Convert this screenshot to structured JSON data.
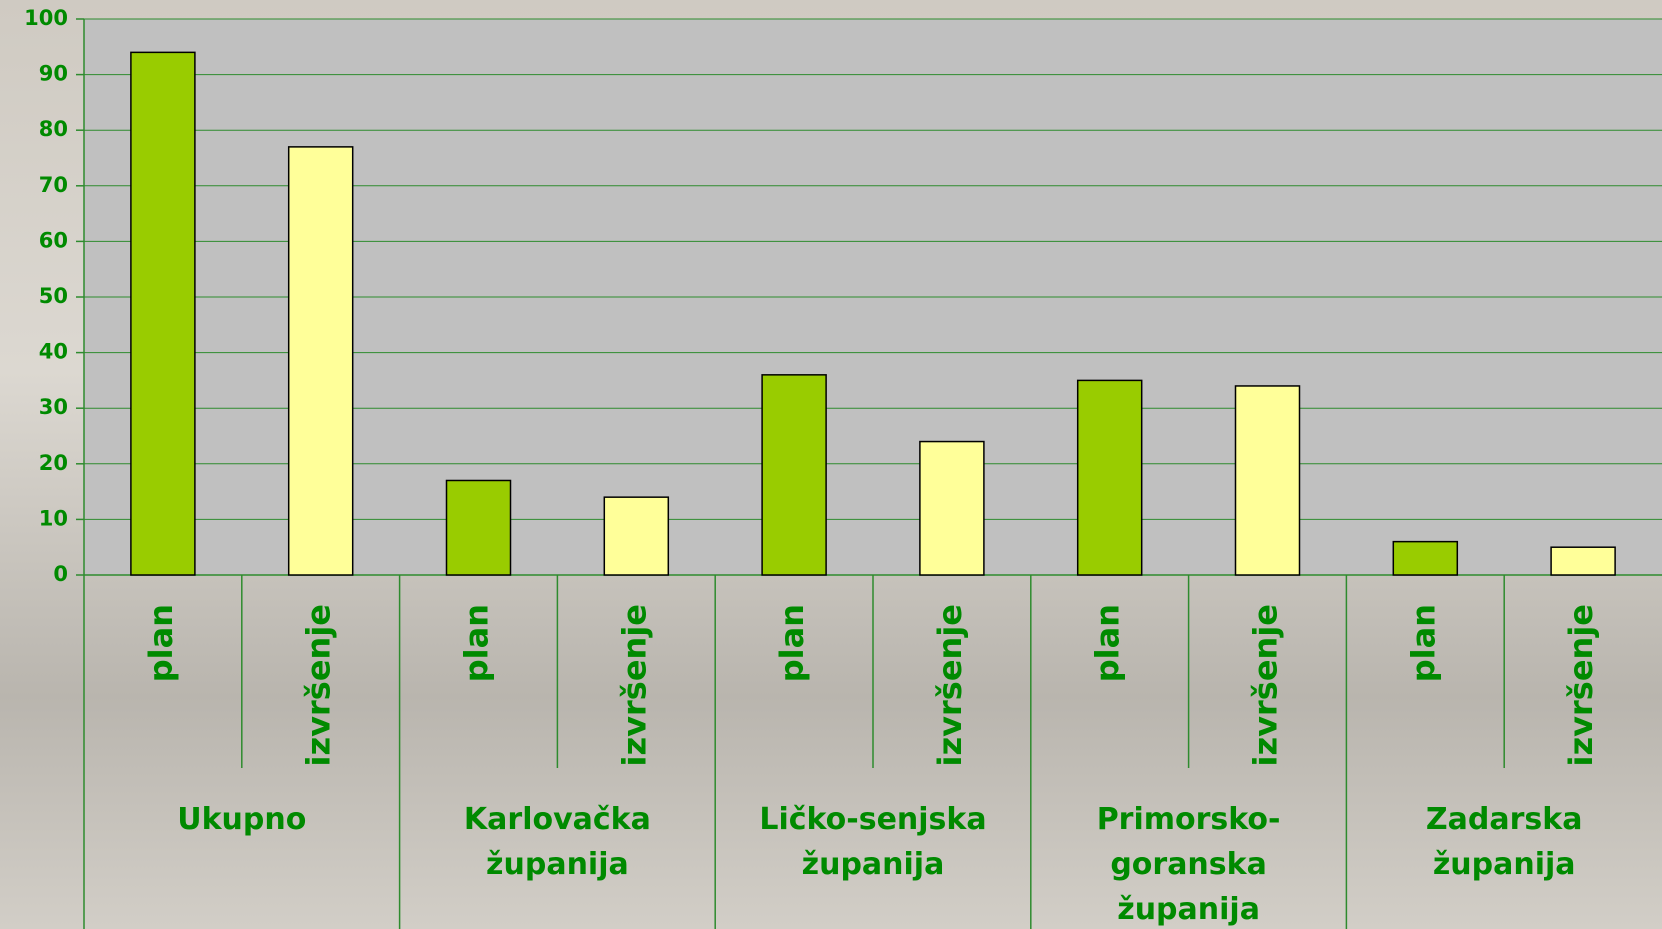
{
  "chart_data": {
    "type": "bar",
    "categories": [
      "Ukupno",
      "Karlovačka županija",
      "Ličko-senjska županija",
      "Primorsko-goranska županija",
      "Zadarska županija"
    ],
    "series": [
      {
        "name": "plan",
        "color": "#99cc00",
        "values": [
          94,
          17,
          36,
          35,
          6
        ]
      },
      {
        "name": "izvršenje",
        "color": "#ffff99",
        "values": [
          77,
          14,
          24,
          34,
          5
        ]
      }
    ],
    "ylim": [
      0,
      100
    ],
    "yticks": [
      0,
      10,
      20,
      30,
      40,
      50,
      60,
      70,
      80,
      90,
      100
    ],
    "grid": true
  }
}
